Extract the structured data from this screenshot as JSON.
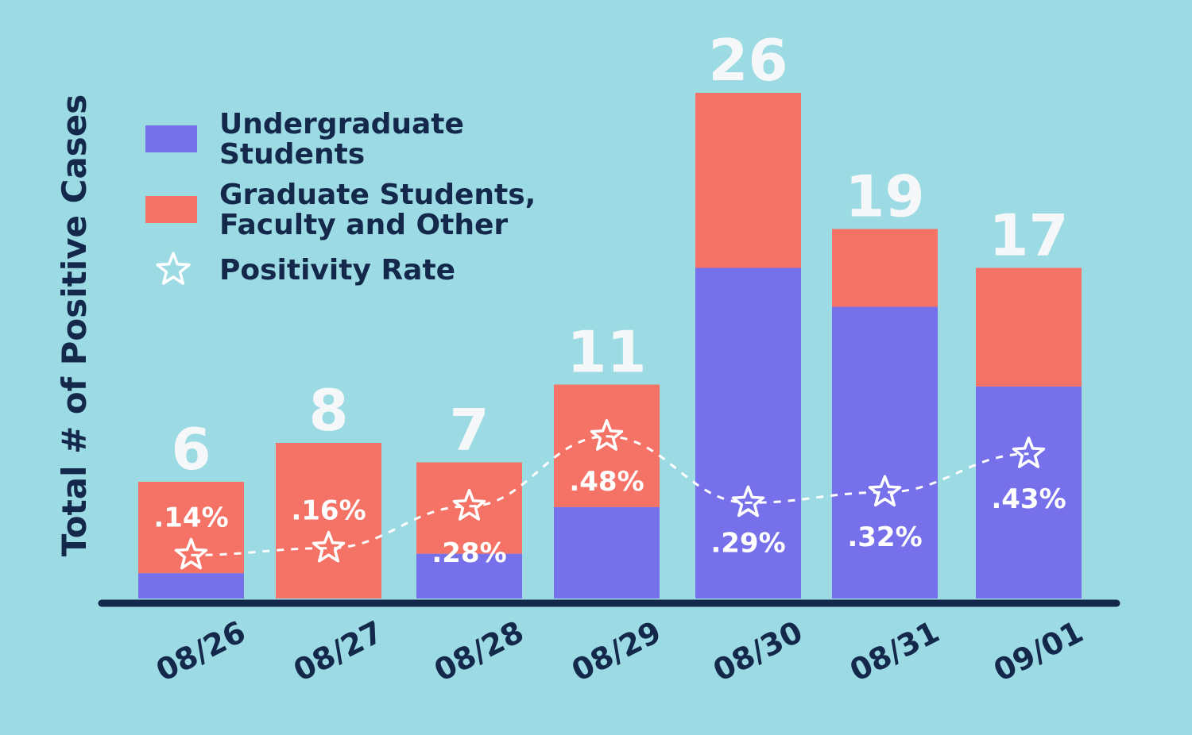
{
  "colors": {
    "background": "#9cdbe3",
    "undergraduate": "#7670ea",
    "graduate": "#f57366",
    "text": "#13284a",
    "total_label": "#f5f7f8",
    "rate_marker": "#ffffff",
    "axis": "#13284a"
  },
  "legend": {
    "undergrad_line1": "Undergraduate",
    "undergrad_line2": "Students",
    "grad_line1": "Graduate Students,",
    "grad_line2": "Faculty and Other",
    "rate": "Positivity Rate",
    "rate_icon": "star-outline-icon",
    "placement": "top-left"
  },
  "chart_data": {
    "type": "bar",
    "stacked": true,
    "ylabel": "Total # of Positive Cases",
    "xlabel": "",
    "ylim": [
      0,
      26
    ],
    "grid": false,
    "categories": [
      "08/26",
      "08/27",
      "08/28",
      "08/29",
      "08/30",
      "08/31",
      "09/01"
    ],
    "series": [
      {
        "name": "Undergraduate Students",
        "values": [
          1.3,
          0,
          2.3,
          4.7,
          17,
          15,
          10.9
        ]
      },
      {
        "name": "Graduate Students, Faculty and Other",
        "values": [
          4.7,
          8,
          4.7,
          6.3,
          9,
          4,
          6.1
        ]
      }
    ],
    "totals": [
      6,
      8,
      7,
      11,
      26,
      19,
      17
    ],
    "total_labels": [
      "6",
      "8",
      "7",
      "11",
      "26",
      "19",
      "17"
    ],
    "positivity_rate": {
      "name": "Positivity Rate",
      "values": [
        0.14,
        0.16,
        0.28,
        0.48,
        0.29,
        0.32,
        0.43
      ],
      "labels": [
        ".14%",
        ".16%",
        ".28%",
        ".48%",
        ".29%",
        ".32%",
        ".43%"
      ]
    }
  }
}
